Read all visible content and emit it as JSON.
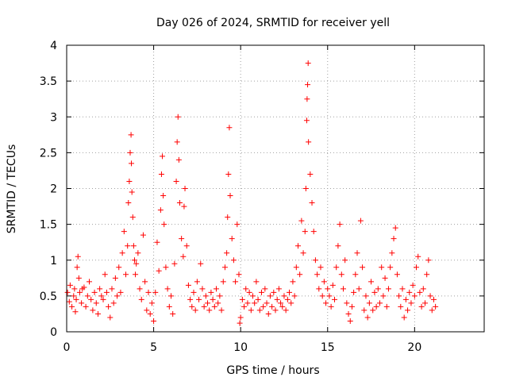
{
  "chart_data": {
    "type": "scatter",
    "title": "Day 026 of 2024, SRMTID for receiver yell",
    "xlabel": "GPS time / hours",
    "ylabel": "SRMTID / TECUs",
    "xlim": [
      0,
      24
    ],
    "ylim": [
      0,
      4
    ],
    "x_ticks": [
      0,
      5,
      10,
      15,
      20
    ],
    "y_ticks": [
      0,
      0.5,
      1,
      1.5,
      2,
      2.5,
      3,
      3.5,
      4
    ],
    "grid": true,
    "legend": "none",
    "marker": "+",
    "color": "#ff0000",
    "series": [
      {
        "name": "SRMTID yell",
        "points": [
          [
            0.05,
            0.55
          ],
          [
            0.15,
            0.42
          ],
          [
            0.2,
            0.65
          ],
          [
            0.3,
            0.35
          ],
          [
            0.4,
            0.5
          ],
          [
            0.45,
            0.6
          ],
          [
            0.5,
            0.28
          ],
          [
            0.55,
            0.45
          ],
          [
            0.6,
            0.9
          ],
          [
            0.65,
            1.05
          ],
          [
            0.7,
            0.75
          ],
          [
            0.75,
            0.55
          ],
          [
            0.85,
            0.4
          ],
          [
            0.9,
            0.6
          ],
          [
            1.0,
            0.62
          ],
          [
            1.1,
            0.35
          ],
          [
            1.2,
            0.5
          ],
          [
            1.3,
            0.7
          ],
          [
            1.4,
            0.45
          ],
          [
            1.5,
            0.3
          ],
          [
            1.6,
            0.55
          ],
          [
            1.7,
            0.4
          ],
          [
            1.8,
            0.25
          ],
          [
            1.9,
            0.6
          ],
          [
            2.0,
            0.5
          ],
          [
            2.1,
            0.45
          ],
          [
            2.2,
            0.8
          ],
          [
            2.3,
            0.55
          ],
          [
            2.4,
            0.35
          ],
          [
            2.5,
            0.2
          ],
          [
            2.6,
            0.6
          ],
          [
            2.7,
            0.4
          ],
          [
            2.8,
            0.75
          ],
          [
            2.9,
            0.5
          ],
          [
            3.0,
            0.9
          ],
          [
            3.1,
            0.55
          ],
          [
            3.2,
            1.1
          ],
          [
            3.3,
            1.4
          ],
          [
            3.4,
            0.8
          ],
          [
            3.5,
            1.2
          ],
          [
            3.55,
            1.8
          ],
          [
            3.6,
            2.1
          ],
          [
            3.65,
            2.5
          ],
          [
            3.7,
            2.75
          ],
          [
            3.72,
            2.35
          ],
          [
            3.75,
            1.95
          ],
          [
            3.8,
            1.6
          ],
          [
            3.85,
            1.2
          ],
          [
            3.9,
            1.0
          ],
          [
            3.95,
            0.8
          ],
          [
            4.0,
            0.95
          ],
          [
            4.1,
            1.1
          ],
          [
            4.2,
            0.6
          ],
          [
            4.3,
            0.45
          ],
          [
            4.4,
            1.35
          ],
          [
            4.5,
            0.7
          ],
          [
            4.6,
            0.3
          ],
          [
            4.7,
            0.55
          ],
          [
            4.8,
            0.25
          ],
          [
            4.9,
            0.4
          ],
          [
            5.0,
            0.15
          ],
          [
            5.1,
            0.55
          ],
          [
            5.2,
            1.25
          ],
          [
            5.3,
            0.85
          ],
          [
            5.4,
            1.7
          ],
          [
            5.45,
            2.2
          ],
          [
            5.5,
            2.45
          ],
          [
            5.55,
            1.9
          ],
          [
            5.6,
            1.5
          ],
          [
            5.7,
            0.9
          ],
          [
            5.8,
            0.6
          ],
          [
            5.9,
            0.35
          ],
          [
            6.0,
            0.5
          ],
          [
            6.1,
            0.25
          ],
          [
            6.2,
            0.95
          ],
          [
            6.3,
            2.1
          ],
          [
            6.35,
            2.65
          ],
          [
            6.4,
            3.0
          ],
          [
            6.45,
            2.4
          ],
          [
            6.5,
            1.8
          ],
          [
            6.6,
            1.3
          ],
          [
            6.7,
            1.05
          ],
          [
            6.75,
            1.75
          ],
          [
            6.8,
            2.0
          ],
          [
            6.9,
            1.2
          ],
          [
            7.0,
            0.65
          ],
          [
            7.1,
            0.45
          ],
          [
            7.2,
            0.35
          ],
          [
            7.3,
            0.55
          ],
          [
            7.4,
            0.3
          ],
          [
            7.5,
            0.7
          ],
          [
            7.6,
            0.45
          ],
          [
            7.7,
            0.95
          ],
          [
            7.8,
            0.6
          ],
          [
            7.9,
            0.35
          ],
          [
            8.0,
            0.5
          ],
          [
            8.1,
            0.4
          ],
          [
            8.2,
            0.3
          ],
          [
            8.3,
            0.55
          ],
          [
            8.4,
            0.45
          ],
          [
            8.5,
            0.35
          ],
          [
            8.6,
            0.6
          ],
          [
            8.7,
            0.4
          ],
          [
            8.8,
            0.5
          ],
          [
            8.9,
            0.3
          ],
          [
            9.0,
            0.7
          ],
          [
            9.1,
            0.9
          ],
          [
            9.2,
            1.1
          ],
          [
            9.25,
            1.6
          ],
          [
            9.3,
            2.2
          ],
          [
            9.35,
            2.85
          ],
          [
            9.4,
            1.9
          ],
          [
            9.5,
            1.3
          ],
          [
            9.6,
            1.0
          ],
          [
            9.7,
            0.7
          ],
          [
            9.8,
            1.5
          ],
          [
            9.9,
            0.8
          ],
          [
            9.95,
            0.12
          ],
          [
            10.0,
            0.2
          ],
          [
            10.1,
            0.45
          ],
          [
            10.2,
            0.35
          ],
          [
            10.3,
            0.6
          ],
          [
            10.4,
            0.4
          ],
          [
            10.5,
            0.55
          ],
          [
            10.6,
            0.3
          ],
          [
            10.7,
            0.5
          ],
          [
            10.8,
            0.4
          ],
          [
            10.9,
            0.7
          ],
          [
            11.0,
            0.45
          ],
          [
            11.1,
            0.3
          ],
          [
            11.2,
            0.55
          ],
          [
            11.3,
            0.35
          ],
          [
            11.4,
            0.6
          ],
          [
            11.5,
            0.4
          ],
          [
            11.6,
            0.25
          ],
          [
            11.7,
            0.5
          ],
          [
            11.8,
            0.35
          ],
          [
            11.9,
            0.55
          ],
          [
            12.0,
            0.3
          ],
          [
            12.1,
            0.45
          ],
          [
            12.2,
            0.6
          ],
          [
            12.3,
            0.4
          ],
          [
            12.4,
            0.35
          ],
          [
            12.5,
            0.5
          ],
          [
            12.6,
            0.3
          ],
          [
            12.7,
            0.45
          ],
          [
            12.8,
            0.55
          ],
          [
            12.9,
            0.4
          ],
          [
            13.0,
            0.7
          ],
          [
            13.1,
            0.5
          ],
          [
            13.2,
            0.9
          ],
          [
            13.3,
            1.2
          ],
          [
            13.4,
            0.8
          ],
          [
            13.5,
            1.55
          ],
          [
            13.6,
            1.1
          ],
          [
            13.7,
            1.4
          ],
          [
            13.75,
            2.0
          ],
          [
            13.8,
            2.95
          ],
          [
            13.82,
            3.25
          ],
          [
            13.85,
            3.45
          ],
          [
            13.88,
            3.75
          ],
          [
            13.9,
            2.65
          ],
          [
            14.0,
            2.2
          ],
          [
            14.1,
            1.8
          ],
          [
            14.2,
            1.4
          ],
          [
            14.3,
            1.0
          ],
          [
            14.4,
            0.8
          ],
          [
            14.5,
            0.6
          ],
          [
            14.6,
            0.9
          ],
          [
            14.7,
            0.5
          ],
          [
            14.8,
            0.7
          ],
          [
            14.9,
            0.4
          ],
          [
            15.0,
            0.6
          ],
          [
            15.1,
            0.5
          ],
          [
            15.2,
            0.35
          ],
          [
            15.3,
            0.65
          ],
          [
            15.4,
            0.45
          ],
          [
            15.5,
            0.9
          ],
          [
            15.6,
            1.2
          ],
          [
            15.7,
            1.5
          ],
          [
            15.8,
            0.8
          ],
          [
            15.9,
            0.6
          ],
          [
            16.0,
            1.0
          ],
          [
            16.1,
            0.4
          ],
          [
            16.2,
            0.25
          ],
          [
            16.3,
            0.15
          ],
          [
            16.4,
            0.35
          ],
          [
            16.5,
            0.55
          ],
          [
            16.6,
            0.8
          ],
          [
            16.7,
            1.1
          ],
          [
            16.8,
            0.6
          ],
          [
            16.9,
            1.55
          ],
          [
            17.0,
            0.9
          ],
          [
            17.1,
            0.3
          ],
          [
            17.2,
            0.5
          ],
          [
            17.3,
            0.2
          ],
          [
            17.4,
            0.4
          ],
          [
            17.5,
            0.7
          ],
          [
            17.6,
            0.3
          ],
          [
            17.7,
            0.55
          ],
          [
            17.8,
            0.35
          ],
          [
            17.9,
            0.6
          ],
          [
            18.0,
            0.4
          ],
          [
            18.1,
            0.9
          ],
          [
            18.2,
            0.5
          ],
          [
            18.3,
            0.75
          ],
          [
            18.4,
            0.35
          ],
          [
            18.5,
            0.6
          ],
          [
            18.6,
            0.9
          ],
          [
            18.7,
            1.1
          ],
          [
            18.8,
            1.3
          ],
          [
            18.9,
            1.45
          ],
          [
            19.0,
            0.8
          ],
          [
            19.1,
            0.5
          ],
          [
            19.2,
            0.35
          ],
          [
            19.3,
            0.6
          ],
          [
            19.4,
            0.2
          ],
          [
            19.5,
            0.45
          ],
          [
            19.6,
            0.3
          ],
          [
            19.7,
            0.55
          ],
          [
            19.8,
            0.4
          ],
          [
            19.9,
            0.65
          ],
          [
            20.0,
            0.5
          ],
          [
            20.1,
            0.9
          ],
          [
            20.2,
            1.05
          ],
          [
            20.3,
            0.55
          ],
          [
            20.4,
            0.35
          ],
          [
            20.5,
            0.6
          ],
          [
            20.6,
            0.4
          ],
          [
            20.7,
            0.8
          ],
          [
            20.8,
            1.0
          ],
          [
            20.9,
            0.5
          ],
          [
            21.0,
            0.3
          ],
          [
            21.1,
            0.45
          ],
          [
            21.2,
            0.35
          ]
        ]
      }
    ]
  }
}
